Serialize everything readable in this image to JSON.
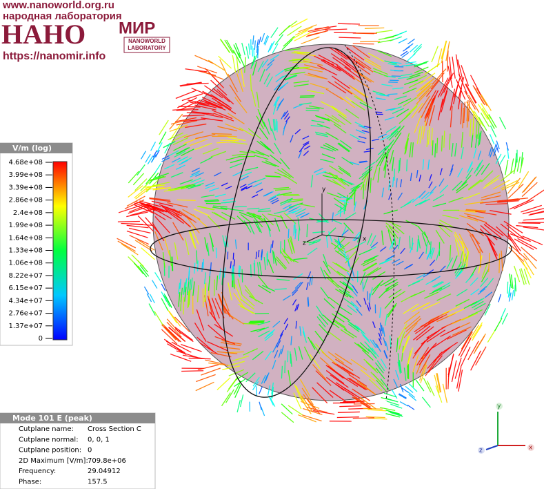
{
  "watermark": {
    "url": "www.nanoworld.org.ru",
    "subtitle": "народная лаборатория",
    "logo_left": "НАНО",
    "logo_right": "МИР",
    "badge_line1": "NANOWORLD",
    "badge_line2": "LABORATORY",
    "site": "https://nanomir.info"
  },
  "legend": {
    "title": "V/m (log)",
    "labels": [
      "4.68e+08",
      "3.99e+08",
      "3.39e+08",
      "2.86e+08",
      "2.4e+08",
      "1.99e+08",
      "1.64e+08",
      "1.33e+08",
      "1.06e+08",
      "8.22e+07",
      "6.15e+07",
      "4.34e+07",
      "2.76e+07",
      "1.37e+07",
      "0"
    ]
  },
  "info": {
    "title": "Mode 101 E (peak)",
    "rows": [
      [
        "Cutplane name:",
        "Cross Section C"
      ],
      [
        "Cutplane normal:",
        "0, 0, 1"
      ],
      [
        "Cutplane position:",
        "0"
      ],
      [
        "2D Maximum [V/m]:",
        "709.8e+06"
      ],
      [
        "Frequency:",
        "29.04912"
      ],
      [
        "Phase:",
        "157.5"
      ]
    ]
  },
  "axes": {
    "x": "x",
    "y": "y",
    "z": "z"
  }
}
